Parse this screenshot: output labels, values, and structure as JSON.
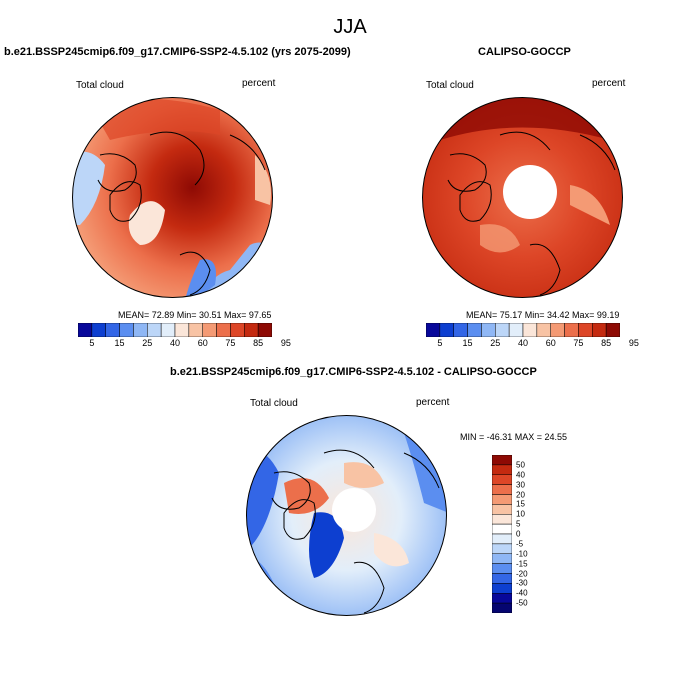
{
  "title": "JJA",
  "panels": [
    {
      "id": "model",
      "title": "b.e21.BSSP245cmip6.f09_g17.CMIP6-SSP2-4.5.102 (yrs 2075-2099)",
      "variable": "Total cloud",
      "units": "percent",
      "stats": "MEAN= 72.89  Min= 30.51  Max= 97.65"
    },
    {
      "id": "obs",
      "title": "CALIPSO-GOCCP",
      "variable": "Total cloud",
      "units": "percent",
      "stats": "MEAN= 75.17  Min= 34.42  Max= 99.19"
    },
    {
      "id": "diff",
      "title": "b.e21.BSSP245cmip6.f09_g17.CMIP6-SSP2-4.5.102 - CALIPSO-GOCCP",
      "variable": "Total cloud",
      "units": "percent",
      "stats": "MIN = -46.31 MAX =  24.55"
    }
  ],
  "colorbar_main": {
    "tick_labels": [
      "5",
      "15",
      "25",
      "40",
      "60",
      "75",
      "85",
      "95"
    ],
    "colors": [
      "#08089a",
      "#0d3fd0",
      "#3366e6",
      "#5b8ef0",
      "#8fb7f5",
      "#bcd6f8",
      "#e2eefa",
      "#fbe6d9",
      "#f8c3a4",
      "#f49a74",
      "#ec6f4b",
      "#dd4627",
      "#c42a10",
      "#8e0a04"
    ]
  },
  "colorbar_diff": {
    "tick_labels": [
      "50",
      "40",
      "30",
      "20",
      "15",
      "10",
      "5",
      "0",
      "-5",
      "-10",
      "-15",
      "-20",
      "-30",
      "-40",
      "-50"
    ],
    "colors": [
      "#8e0a04",
      "#c42a10",
      "#dd4627",
      "#ec6f4b",
      "#f49a74",
      "#f8c3a4",
      "#fbe6d9",
      "#ffffff",
      "#e2eefa",
      "#bcd6f8",
      "#8fb7f5",
      "#5b8ef0",
      "#3366e6",
      "#0d3fd0",
      "#08089a",
      "#050570"
    ]
  }
}
